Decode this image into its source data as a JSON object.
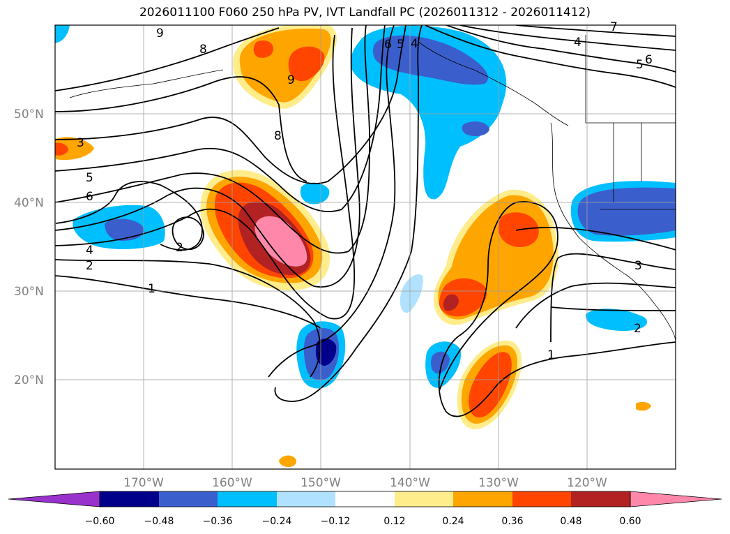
{
  "title": "2026011100 F060 250 hPa PV, IVT Landfall PC (2026011312 - 2026011412)",
  "map": {
    "projection": "PlateCarree",
    "lon_range": [
      -180,
      -110
    ],
    "lat_range": [
      10,
      60
    ],
    "lat_ticks": [
      {
        "value": 20,
        "label": "20°N"
      },
      {
        "value": 30,
        "label": "30°N"
      },
      {
        "value": 40,
        "label": "40°N"
      },
      {
        "value": 50,
        "label": "50°N"
      }
    ],
    "lon_ticks": [
      {
        "value": -170,
        "label": "170°W"
      },
      {
        "value": -160,
        "label": "160°W"
      },
      {
        "value": -150,
        "label": "150°W"
      },
      {
        "value": -140,
        "label": "140°W"
      },
      {
        "value": -130,
        "label": "130°W"
      },
      {
        "value": -120,
        "label": "120°W"
      }
    ],
    "grid": true
  },
  "colorbar": {
    "ticks": [
      "−0.60",
      "−0.48",
      "−0.36",
      "−0.24",
      "−0.12",
      "0.12",
      "0.24",
      "0.36",
      "0.48",
      "0.60"
    ],
    "colors": [
      "#9932cc",
      "#00008b",
      "#3a5fcd",
      "#00bfff",
      "#b0e2ff",
      "#ffffff",
      "#ffec8b",
      "#ffa500",
      "#ff4500",
      "#b22222",
      "#ff88aa"
    ],
    "extend": "both"
  },
  "contour_labels": [
    "9",
    "8",
    "9",
    "8",
    "3",
    "5",
    "6",
    "4",
    "2",
    "1",
    "2",
    "6",
    "5",
    "4",
    "4",
    "5",
    "6",
    "7",
    "3",
    "2",
    "1"
  ],
  "chart_data": {
    "type": "map",
    "fields": [
      {
        "name": "IVT Landfall PC (shaded)",
        "levels": [
          -0.6,
          -0.48,
          -0.36,
          -0.24,
          -0.12,
          0.12,
          0.24,
          0.36,
          0.48,
          0.6
        ]
      },
      {
        "name": "250 hPa PV (contours)",
        "levels": [
          1,
          2,
          3,
          4,
          5,
          6,
          7,
          8,
          9
        ]
      }
    ]
  }
}
